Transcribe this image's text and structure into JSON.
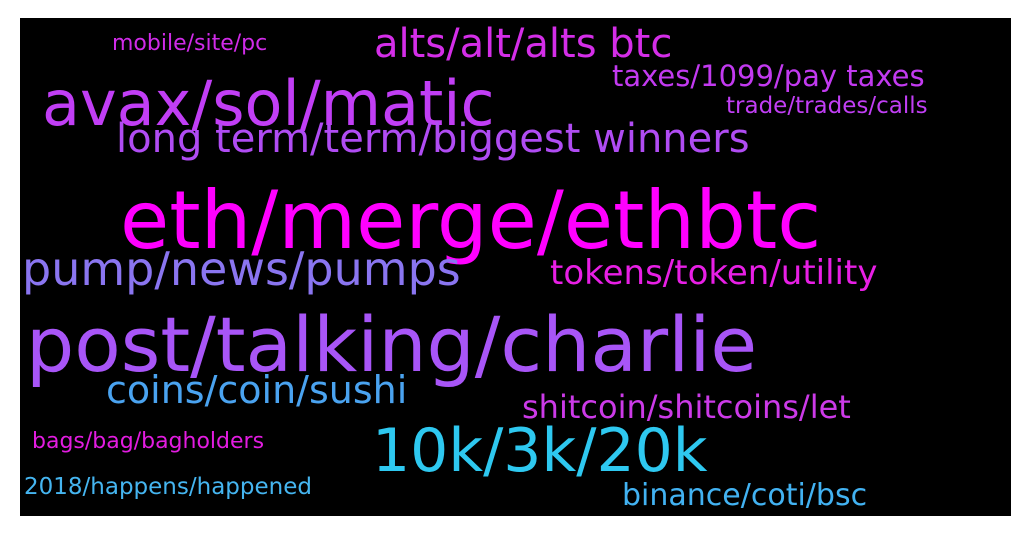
{
  "words": [
    {
      "text": "eth/merge/ethbtc",
      "color": "#ff00ff"
    },
    {
      "text": "post/talking/charlie",
      "color": "#a855f7"
    },
    {
      "text": "avax/sol/matic",
      "color": "#c13ef5"
    },
    {
      "text": "pump/news/pumps",
      "color": "#8a75f0"
    },
    {
      "text": "10k/3k/20k",
      "color": "#2ec8f0"
    },
    {
      "text": "long term/term/biggest winners",
      "color": "#b04cf3"
    },
    {
      "text": "alts/alt/alts btc",
      "color": "#d42ee8"
    },
    {
      "text": "tokens/token/utility",
      "color": "#e81fe5"
    },
    {
      "text": "coins/coin/sushi",
      "color": "#4aa3f0"
    },
    {
      "text": "shitcoin/shitcoins/let",
      "color": "#cc3ae8"
    },
    {
      "text": "taxes/1099/pay taxes",
      "color": "#c23af0"
    },
    {
      "text": "mobile/site/pc",
      "color": "#d02be8"
    },
    {
      "text": "trade/trades/calls",
      "color": "#c13ef5"
    },
    {
      "text": "bags/bag/bagholders",
      "color": "#e21ce0"
    },
    {
      "text": "2018/happens/happened",
      "color": "#45b5f0"
    },
    {
      "text": "binance/coti/bsc",
      "color": "#42b2f2"
    }
  ]
}
